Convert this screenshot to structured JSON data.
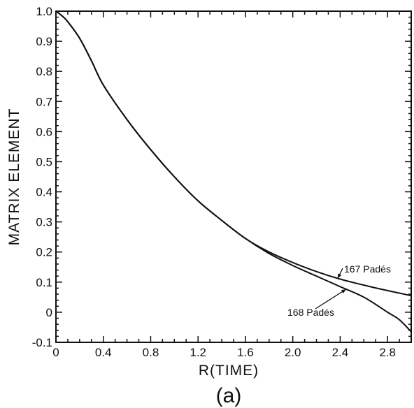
{
  "chart_data": {
    "type": "line",
    "panel_label": "(a)",
    "xlabel": "R(TIME)",
    "ylabel": "MATRIX ELEMENT",
    "xlim": [
      0,
      3.0
    ],
    "ylim": [
      -0.1,
      1.0
    ],
    "x_ticks": [
      0,
      0.4,
      0.8,
      1.2,
      1.6,
      2.0,
      2.4,
      2.8
    ],
    "x_tick_labels": [
      "0",
      "0.4",
      "0.8",
      "1.2",
      "1.6",
      "2.0",
      "2.4",
      "2.8"
    ],
    "y_ticks": [
      -0.1,
      0,
      0.1,
      0.2,
      0.3,
      0.4,
      0.5,
      0.6,
      0.7,
      0.8,
      0.9,
      1.0
    ],
    "y_tick_labels": [
      "-0.1",
      "0",
      "0.1",
      "0.2",
      "0.3",
      "0.4",
      "0.5",
      "0.6",
      "0.7",
      "0.8",
      "0.9",
      "1.0"
    ],
    "grid": false,
    "series": [
      {
        "name": "167 Padés",
        "x": [
          0,
          0.05,
          0.1,
          0.2,
          0.3,
          0.4,
          0.6,
          0.8,
          1.0,
          1.2,
          1.4,
          1.6,
          1.8,
          2.0,
          2.2,
          2.4,
          2.6,
          2.8,
          3.0
        ],
        "y": [
          1.0,
          0.985,
          0.965,
          0.91,
          0.835,
          0.755,
          0.64,
          0.54,
          0.45,
          0.37,
          0.305,
          0.245,
          0.2,
          0.165,
          0.135,
          0.11,
          0.09,
          0.072,
          0.055
        ]
      },
      {
        "name": "168 Padés",
        "x": [
          0,
          0.05,
          0.1,
          0.2,
          0.3,
          0.4,
          0.6,
          0.8,
          1.0,
          1.2,
          1.4,
          1.6,
          1.8,
          2.0,
          2.2,
          2.4,
          2.6,
          2.8,
          2.9,
          3.0
        ],
        "y": [
          1.0,
          0.985,
          0.965,
          0.91,
          0.835,
          0.755,
          0.64,
          0.54,
          0.45,
          0.37,
          0.305,
          0.245,
          0.195,
          0.155,
          0.12,
          0.085,
          0.05,
          0.0,
          -0.025,
          -0.065
        ]
      }
    ],
    "annotations": [
      {
        "text": "167 Padés",
        "series": "167 Padés",
        "x": 2.38
      },
      {
        "text": "168 Padés",
        "series": "168 Padés",
        "x": 2.45
      }
    ]
  }
}
